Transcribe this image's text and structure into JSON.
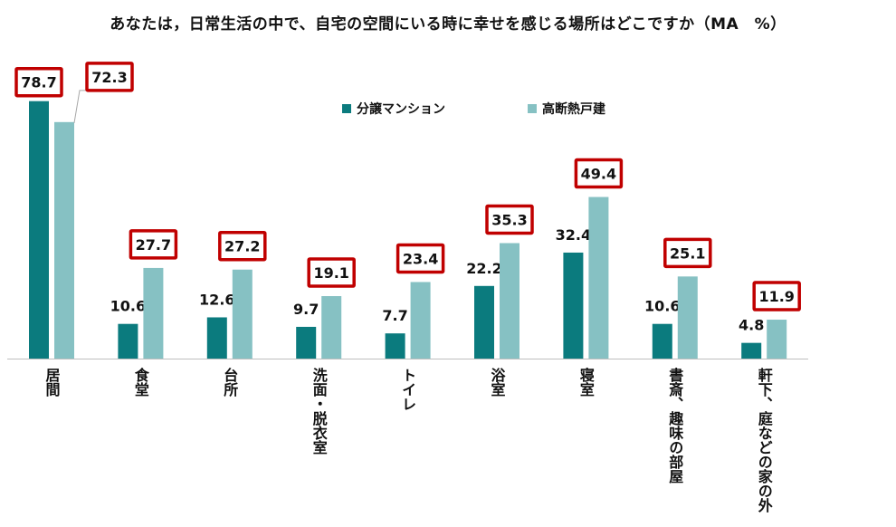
{
  "title": "あなたは，日常生活の中で、自宅の空間にいる時に幸せを感じる場所はどこですか（MA　%）",
  "colors": {
    "series1": "#0b7b7e",
    "series2": "#86c1c3",
    "highlight_box": "#c00000",
    "axis": "#bfbfbf"
  },
  "chart_data": {
    "type": "bar",
    "title": "あなたは，日常生活の中で、自宅の空間にいる時に幸せを感じる場所はどこですか（MA　%）",
    "categories": [
      "居間",
      "食堂",
      "台所",
      "洗面・脱衣室",
      "トイレ",
      "浴室",
      "寝室",
      "書斎、趣味の部屋",
      "軒下、庭などの家の外"
    ],
    "series": [
      {
        "name": "分譲マンション",
        "values": [
          78.7,
          10.6,
          12.6,
          9.7,
          7.7,
          22.2,
          32.4,
          10.6,
          4.8
        ]
      },
      {
        "name": "高断熱戸建",
        "values": [
          72.3,
          27.7,
          27.2,
          19.1,
          23.4,
          35.3,
          49.4,
          25.1,
          11.9
        ]
      }
    ],
    "highlighted_labels": [
      "78.7",
      "72.3",
      "27.7",
      "27.2",
      "19.1",
      "23.4",
      "35.3",
      "49.4",
      "25.1",
      "11.9"
    ],
    "ylim": [
      0,
      80
    ],
    "legend_position": "top-center",
    "grid": false
  }
}
